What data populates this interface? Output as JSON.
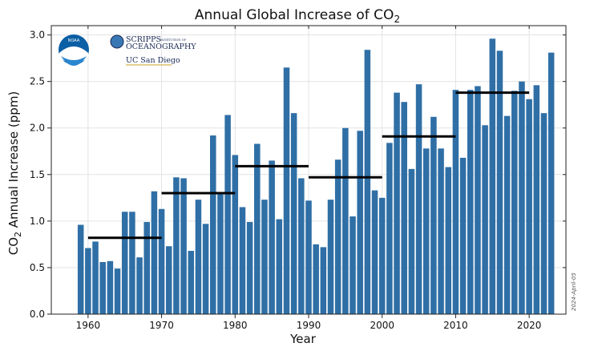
{
  "chart_data": {
    "type": "bar",
    "title_main": "Annual Global Increase of CO",
    "title_sub": "2",
    "xlabel": "Year",
    "ylabel_main": "CO",
    "ylabel_sub": "2",
    "ylabel_rest": " Annual Increase (ppm)",
    "xlim": [
      1955,
      2025
    ],
    "ylim": [
      0,
      3.1
    ],
    "grid": true,
    "bar_color": "#2f6fa6",
    "mean_color": "#000000",
    "xticks": [
      {
        "value": 1960,
        "label": "1960"
      },
      {
        "value": 1970,
        "label": "1970"
      },
      {
        "value": 1980,
        "label": "1980"
      },
      {
        "value": 1990,
        "label": "1990"
      },
      {
        "value": 2000,
        "label": "2000"
      },
      {
        "value": 2010,
        "label": "2010"
      },
      {
        "value": 2020,
        "label": "2020"
      }
    ],
    "yticks": [
      {
        "value": 0.0,
        "label": "0.0"
      },
      {
        "value": 0.5,
        "label": "0.5"
      },
      {
        "value": 1.0,
        "label": "1.0"
      },
      {
        "value": 1.5,
        "label": "1.5"
      },
      {
        "value": 2.0,
        "label": "2.0"
      },
      {
        "value": 2.5,
        "label": "2.5"
      },
      {
        "value": 3.0,
        "label": "3.0"
      }
    ],
    "years": [
      1959,
      1960,
      1961,
      1962,
      1963,
      1964,
      1965,
      1966,
      1967,
      1968,
      1969,
      1970,
      1971,
      1972,
      1973,
      1974,
      1975,
      1976,
      1977,
      1978,
      1979,
      1980,
      1981,
      1982,
      1983,
      1984,
      1985,
      1986,
      1987,
      1988,
      1989,
      1990,
      1991,
      1992,
      1993,
      1994,
      1995,
      1996,
      1997,
      1998,
      1999,
      2000,
      2001,
      2002,
      2003,
      2004,
      2005,
      2006,
      2007,
      2008,
      2009,
      2010,
      2011,
      2012,
      2013,
      2014,
      2015,
      2016,
      2017,
      2018,
      2019,
      2020,
      2021,
      2022,
      2023
    ],
    "values": [
      0.96,
      0.71,
      0.78,
      0.56,
      0.57,
      0.49,
      1.1,
      1.1,
      0.61,
      0.99,
      1.32,
      1.13,
      0.73,
      1.47,
      1.46,
      0.68,
      1.23,
      0.97,
      1.92,
      1.29,
      2.14,
      1.71,
      1.15,
      0.99,
      1.83,
      1.23,
      1.65,
      1.02,
      2.65,
      2.16,
      1.46,
      1.22,
      0.75,
      0.72,
      1.23,
      1.66,
      2.0,
      1.05,
      1.97,
      2.84,
      1.33,
      1.25,
      1.84,
      2.38,
      2.28,
      1.56,
      2.47,
      1.78,
      2.12,
      1.78,
      1.58,
      2.41,
      1.68,
      2.41,
      2.45,
      2.03,
      2.96,
      2.83,
      2.13,
      2.4,
      2.5,
      2.31,
      2.46,
      2.16,
      2.81
    ],
    "decade_means": [
      {
        "start": 1960,
        "end": 1970,
        "value": 0.82
      },
      {
        "start": 1970,
        "end": 1980,
        "value": 1.3
      },
      {
        "start": 1980,
        "end": 1990,
        "value": 1.59
      },
      {
        "start": 1990,
        "end": 2000,
        "value": 1.47
      },
      {
        "start": 2000,
        "end": 2010,
        "value": 1.91
      },
      {
        "start": 2010,
        "end": 2020,
        "value": 2.38
      }
    ],
    "date_note": "2024-April-05"
  },
  "logos": {
    "noaa_text": "NOAA",
    "scripps_line1": "SCRIPPS",
    "scripps_tag": "INSTITUTION OF",
    "scripps_line2": "OCEANOGRAPHY",
    "ucsd": "UC San Diego"
  }
}
